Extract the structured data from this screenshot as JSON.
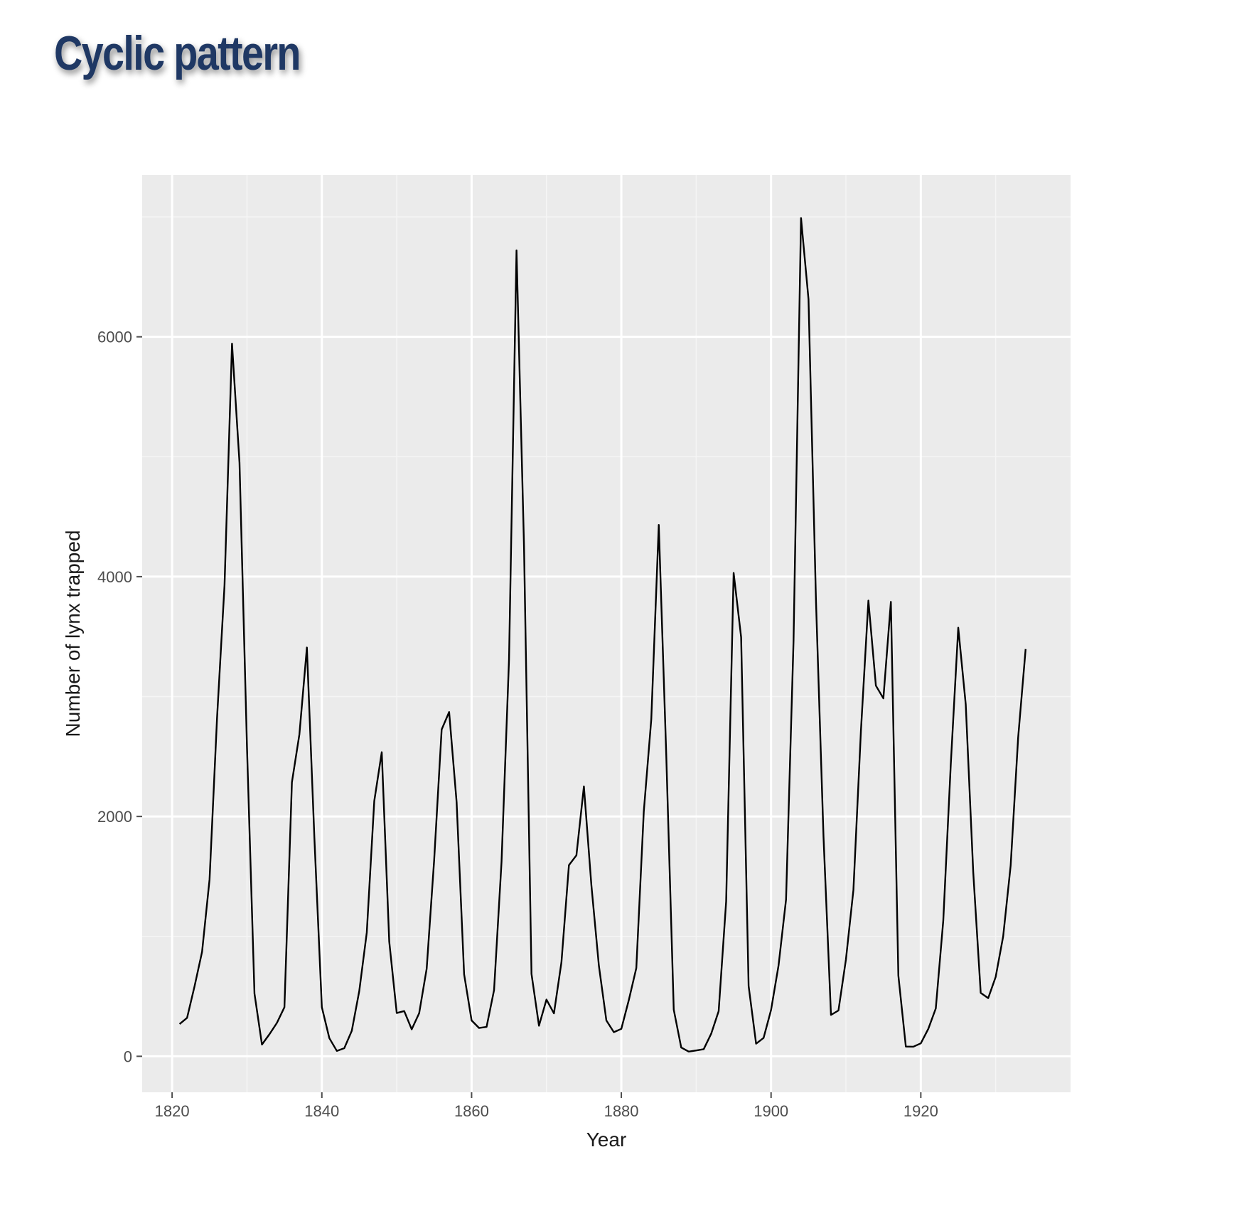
{
  "slide": {
    "title": "Cyclic pattern"
  },
  "chart_data": {
    "type": "line",
    "xlabel": "Year",
    "ylabel": "Number of lynx trapped",
    "xlim": [
      1816,
      1940
    ],
    "ylim": [
      -300,
      7350
    ],
    "x_ticks": [
      1820,
      1840,
      1860,
      1880,
      1900,
      1920
    ],
    "y_ticks": [
      0,
      2000,
      4000,
      6000
    ],
    "grid": true,
    "panel_background": "#ebebeb",
    "line_color": "#000000",
    "series": [
      {
        "x": [
          1821,
          1822,
          1823,
          1824,
          1825,
          1826,
          1827,
          1828,
          1829,
          1830,
          1831,
          1832,
          1833,
          1834,
          1835,
          1836,
          1837,
          1838,
          1839,
          1840,
          1841,
          1842,
          1843,
          1844,
          1845,
          1846,
          1847,
          1848,
          1849,
          1850,
          1851,
          1852,
          1853,
          1854,
          1855,
          1856,
          1857,
          1858,
          1859,
          1860,
          1861,
          1862,
          1863,
          1864,
          1865,
          1866,
          1867,
          1868,
          1869,
          1870,
          1871,
          1872,
          1873,
          1874,
          1875,
          1876,
          1877,
          1878,
          1879,
          1880,
          1881,
          1882,
          1883,
          1884,
          1885,
          1886,
          1887,
          1888,
          1889,
          1890,
          1891,
          1892,
          1893,
          1894,
          1895,
          1896,
          1897,
          1898,
          1899,
          1900,
          1901,
          1902,
          1903,
          1904,
          1905,
          1906,
          1907,
          1908,
          1909,
          1910,
          1911,
          1912,
          1913,
          1914,
          1915,
          1916,
          1917,
          1918,
          1919,
          1920,
          1921,
          1922,
          1923,
          1924,
          1925,
          1926,
          1927,
          1928,
          1929,
          1930,
          1931,
          1932,
          1933,
          1934
        ],
        "values": [
          269,
          321,
          585,
          871,
          1475,
          2821,
          3928,
          5943,
          4950,
          2577,
          523,
          98,
          184,
          279,
          409,
          2285,
          2685,
          3409,
          1824,
          409,
          151,
          45,
          68,
          213,
          546,
          1033,
          2129,
          2536,
          957,
          361,
          377,
          225,
          360,
          731,
          1638,
          2725,
          2871,
          2119,
          684,
          299,
          236,
          245,
          552,
          1623,
          3311,
          6721,
          4254,
          687,
          255,
          473,
          358,
          784,
          1594,
          1676,
          2251,
          1426,
          756,
          299,
          201,
          229,
          469,
          736,
          2042,
          2811,
          4431,
          2511,
          389,
          73,
          39,
          49,
          59,
          188,
          377,
          1292,
          4031,
          3495,
          587,
          105,
          153,
          387,
          758,
          1307,
          3465,
          6991,
          6313,
          3794,
          1836,
          345,
          382,
          808,
          1388,
          2713,
          3800,
          3091,
          2985,
          3790,
          674,
          81,
          80,
          108,
          229,
          399,
          1132,
          2432,
          3574,
          2935,
          1537,
          529,
          485,
          662,
          1000,
          1590,
          2657,
          3396
        ]
      }
    ]
  }
}
